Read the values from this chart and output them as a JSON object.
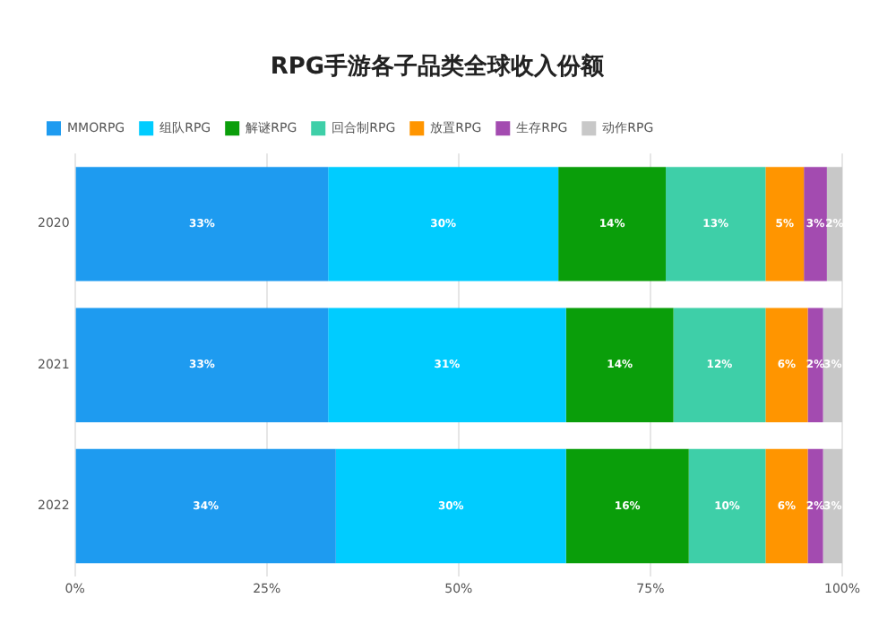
{
  "chart_data": {
    "type": "bar",
    "orientation": "horizontal",
    "stacked": true,
    "title": "RPG手游各子品类全球收入份额",
    "categories": [
      "2020",
      "2021",
      "2022"
    ],
    "series": [
      {
        "name": "MMORPG",
        "color": "#1e9bf0",
        "values": [
          33,
          33,
          34
        ],
        "value_labels": [
          "33%",
          "33%",
          "34%"
        ]
      },
      {
        "name": "组队RPG",
        "color": "#00ccff",
        "values": [
          30,
          31,
          30
        ],
        "value_labels": [
          "30%",
          "31%",
          "30%"
        ]
      },
      {
        "name": "解谜RPG",
        "color": "#0a9e0a",
        "values": [
          14,
          14,
          16
        ],
        "value_labels": [
          "14%",
          "14%",
          "16%"
        ]
      },
      {
        "name": "回合制RPG",
        "color": "#3ecfa8",
        "values": [
          13,
          12,
          10
        ],
        "value_labels": [
          "13%",
          "12%",
          "10%"
        ]
      },
      {
        "name": "放置RPG",
        "color": "#ff9500",
        "values": [
          5,
          5.5,
          5.5
        ],
        "value_labels": [
          "5%",
          "6%",
          "6%"
        ]
      },
      {
        "name": "生存RPG",
        "color": "#a34bb0",
        "values": [
          3,
          2,
          2
        ],
        "value_labels": [
          "3%",
          "2%",
          "2%"
        ]
      },
      {
        "name": "动作RPG",
        "color": "#c8c8c8",
        "values": [
          2,
          2.5,
          2.5
        ],
        "value_labels": [
          "2%",
          "3%",
          "3%"
        ]
      }
    ],
    "xlim": [
      0,
      100
    ],
    "xticks": [
      {
        "value": 0,
        "label": "0%"
      },
      {
        "value": 25,
        "label": "25%"
      },
      {
        "value": 50,
        "label": "50%"
      },
      {
        "value": 75,
        "label": "75%"
      },
      {
        "value": 100,
        "label": "100%"
      }
    ],
    "grid": "x",
    "legend": "top left"
  }
}
